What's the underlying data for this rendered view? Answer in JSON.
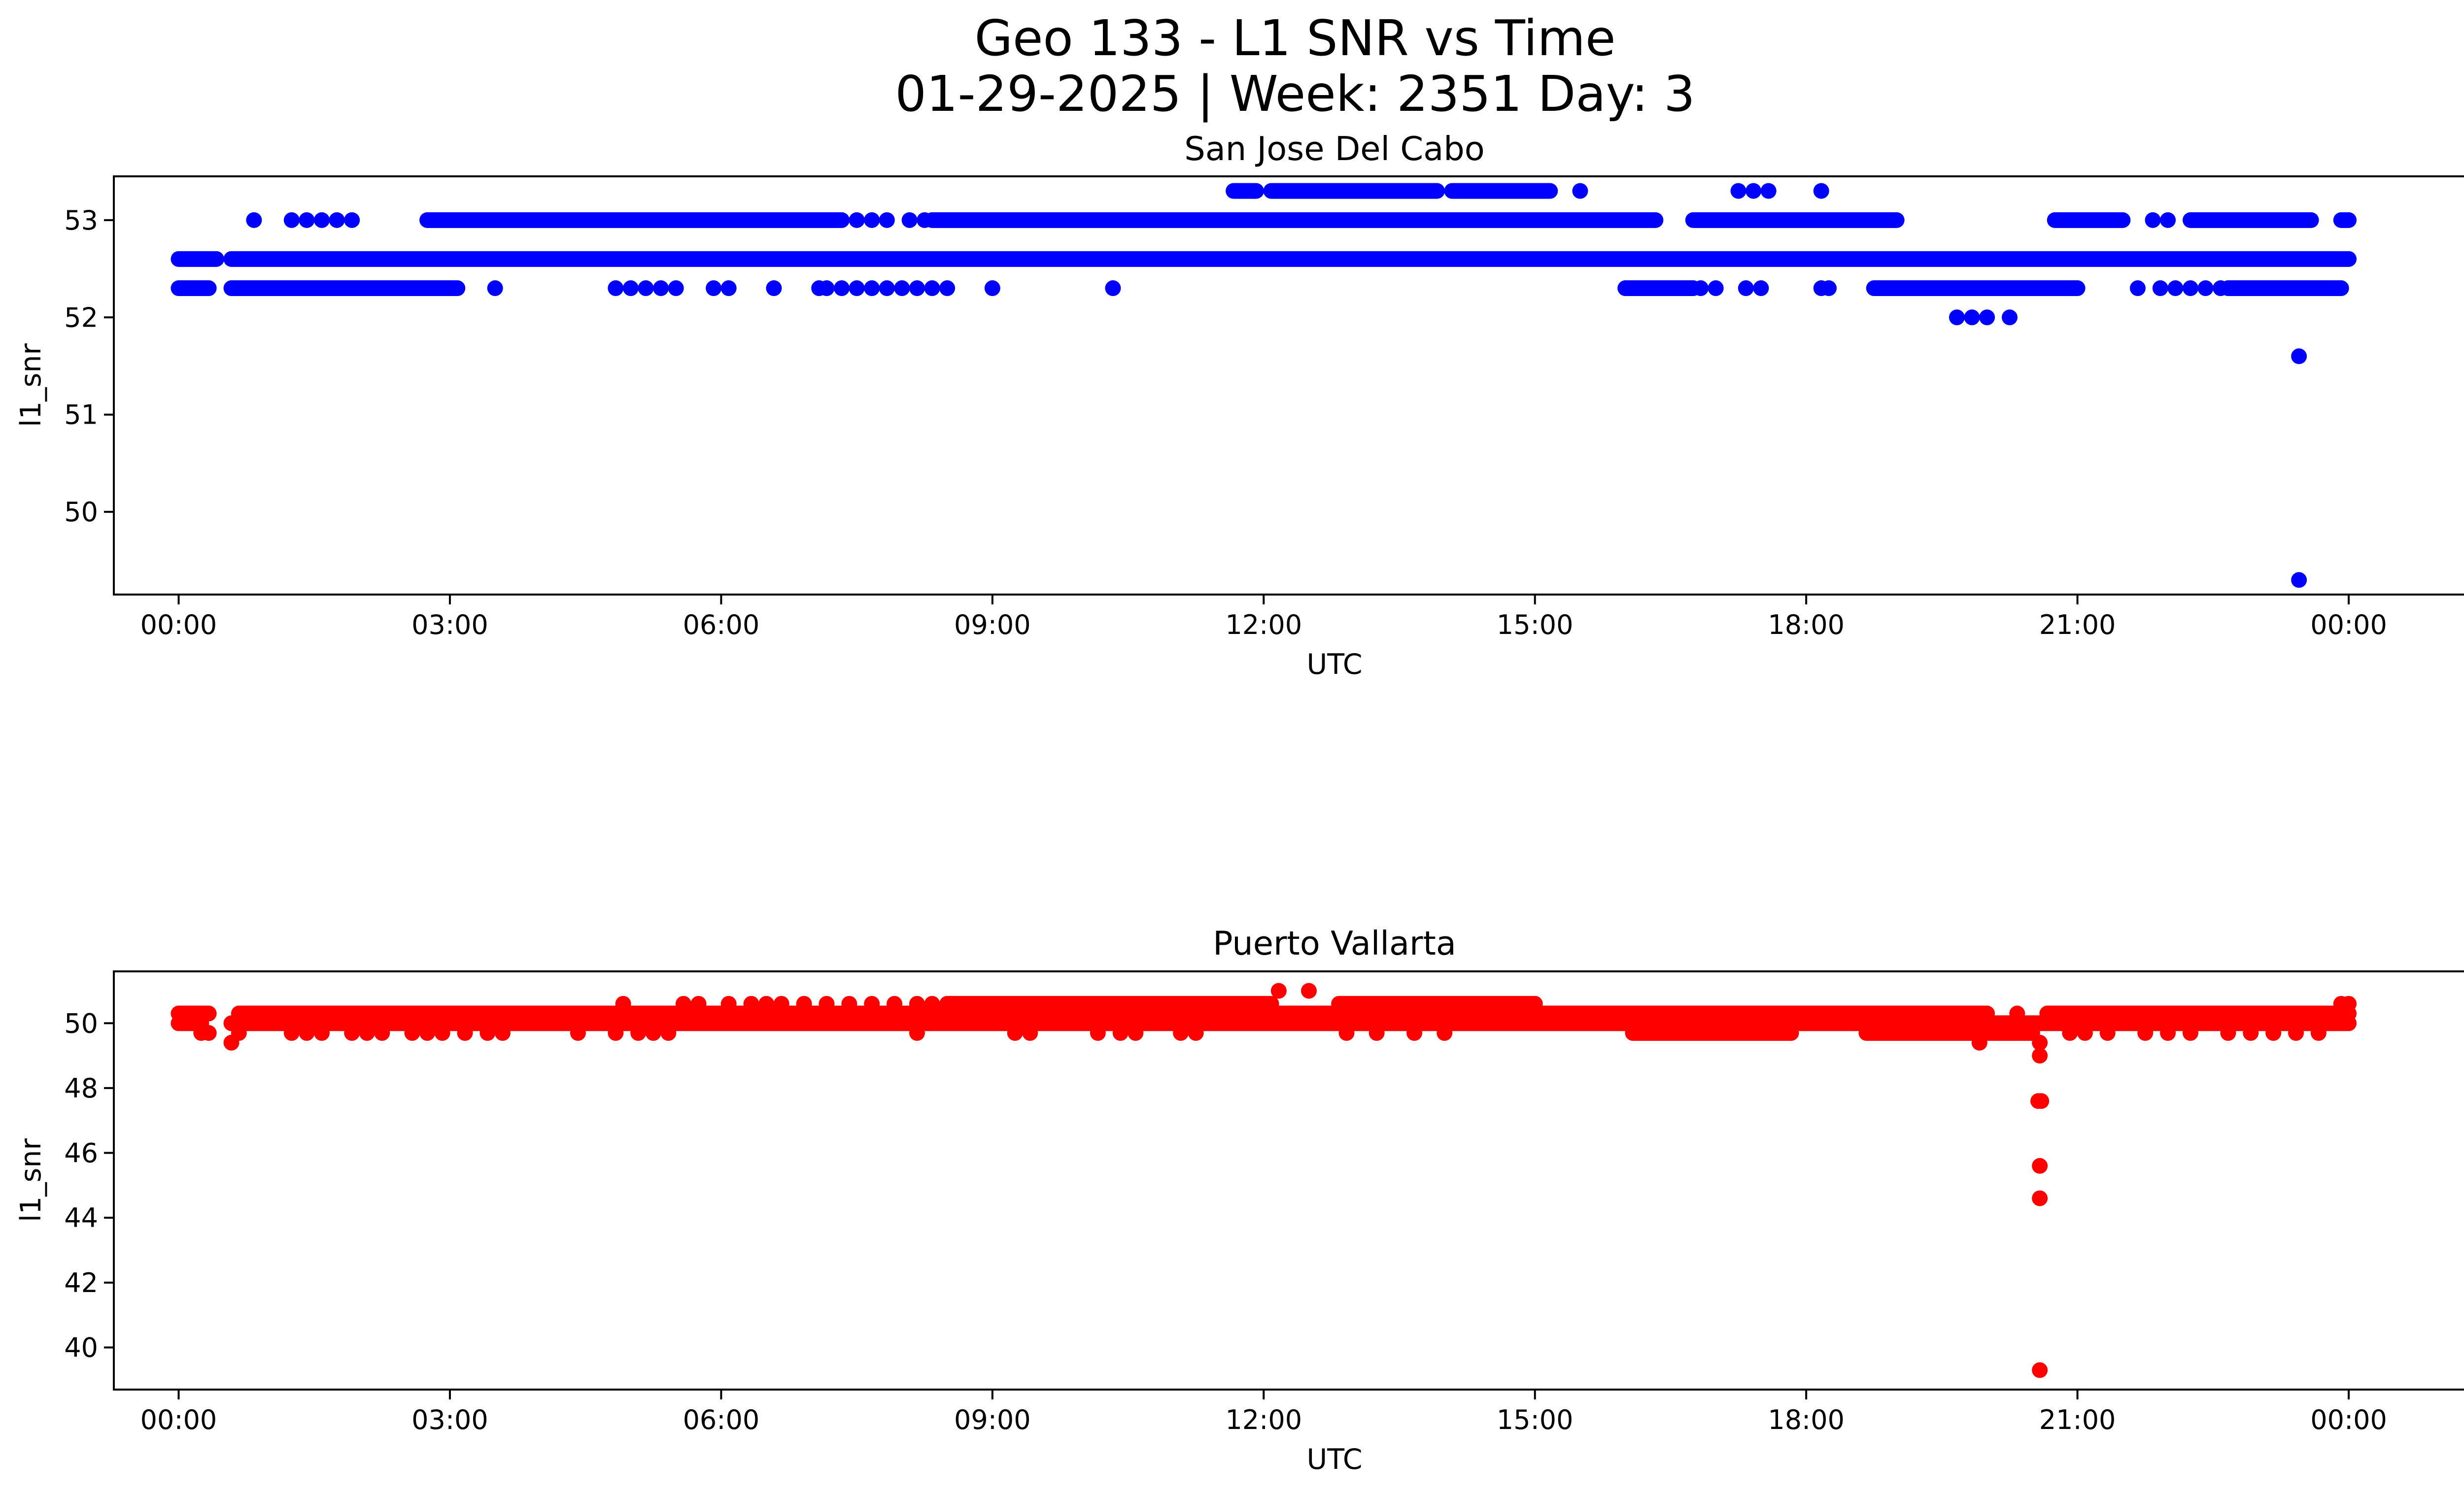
{
  "figure": {
    "title_line1": "Geo 133 - L1 SNR vs Time",
    "title_line2": "01-29-2025 | Week: 2351 Day: 3"
  },
  "chart_data": [
    {
      "type": "scatter",
      "title": "San Jose Del Cabo",
      "xlabel": "UTC",
      "ylabel": "l1_snr",
      "color": "#0000ff",
      "xlim": [
        "23:17",
        "26:17"
      ],
      "ylim": [
        49.15,
        53.45
      ],
      "x_ticks": [
        "00:00",
        "03:00",
        "06:00",
        "09:00",
        "12:00",
        "15:00",
        "18:00",
        "21:00",
        "00:00"
      ],
      "y_ticks": [
        50,
        51,
        52,
        53
      ],
      "series": [
        {
          "levels": [
            {
              "y": 53.3,
              "segments": [
                [
                  "11:40",
                  "11:55"
                ],
                [
                  "12:05",
                  "13:55"
                ],
                [
                  "14:05",
                  "15:10"
                ]
              ],
              "points": [
                "15:30",
                "17:15",
                "17:25",
                "17:35",
                "18:10"
              ]
            },
            {
              "y": 53.0,
              "segments": [
                [
                  "02:45",
                  "07:20"
                ],
                [
                  "08:20",
                  "16:20"
                ],
                [
                  "16:45",
                  "19:00"
                ],
                [
                  "20:45",
                  "21:30"
                ],
                [
                  "22:15",
                  "23:35"
                ],
                [
                  "23:55",
                  "24:00"
                ]
              ],
              "points": [
                "00:50",
                "01:15",
                "01:25",
                "01:35",
                "01:45",
                "01:55",
                "07:30",
                "07:40",
                "07:50",
                "08:05",
                "08:15",
                "21:50",
                "22:00"
              ]
            },
            {
              "y": 52.6,
              "segments": [
                [
                  "00:00",
                  "00:25"
                ],
                [
                  "00:35",
                  "24:00"
                ]
              ],
              "points": []
            },
            {
              "y": 52.3,
              "segments": [
                [
                  "00:00",
                  "00:20"
                ],
                [
                  "00:35",
                  "03:05"
                ],
                [
                  "16:00",
                  "16:45"
                ],
                [
                  "18:45",
                  "21:00"
                ],
                [
                  "22:40",
                  "23:55"
                ]
              ],
              "points": [
                "03:30",
                "04:50",
                "05:00",
                "05:10",
                "05:20",
                "05:30",
                "05:55",
                "06:05",
                "06:35",
                "07:05",
                "07:10",
                "07:20",
                "07:30",
                "07:40",
                "07:50",
                "08:00",
                "08:10",
                "08:20",
                "08:30",
                "09:00",
                "10:20",
                "16:50",
                "17:00",
                "17:20",
                "17:30",
                "18:10",
                "18:15",
                "21:40",
                "21:55",
                "22:05",
                "22:15",
                "22:25",
                "22:35"
              ]
            },
            {
              "y": 52.0,
              "segments": [],
              "points": [
                "19:40",
                "19:50",
                "20:00",
                "20:15"
              ]
            },
            {
              "y": 51.6,
              "segments": [],
              "points": [
                "23:27"
              ]
            },
            {
              "y": 49.3,
              "segments": [],
              "points": [
                "23:27"
              ]
            }
          ]
        }
      ]
    },
    {
      "type": "scatter",
      "title": "Puerto Vallarta",
      "xlabel": "UTC",
      "ylabel": "l1_snr",
      "color": "#ff0000",
      "xlim": [
        "23:17",
        "26:17"
      ],
      "ylim": [
        38.7,
        51.6
      ],
      "x_ticks": [
        "00:00",
        "03:00",
        "06:00",
        "09:00",
        "12:00",
        "15:00",
        "18:00",
        "21:00",
        "00:00"
      ],
      "y_ticks": [
        40,
        42,
        44,
        46,
        48,
        50
      ],
      "series": [
        {
          "levels": [
            {
              "y": 51.0,
              "segments": [],
              "points": [
                "12:10",
                "12:30"
              ]
            },
            {
              "y": 50.6,
              "segments": [
                [
                  "08:30",
                  "12:05"
                ],
                [
                  "12:50",
                  "15:00"
                ]
              ],
              "points": [
                "04:55",
                "05:35",
                "05:45",
                "06:05",
                "06:20",
                "06:30",
                "06:40",
                "06:55",
                "07:10",
                "07:25",
                "07:40",
                "07:55",
                "08:10",
                "08:20",
                "23:55",
                "24:00"
              ]
            },
            {
              "y": 50.3,
              "segments": [
                [
                  "00:00",
                  "00:20"
                ],
                [
                  "00:40",
                  "20:00"
                ],
                [
                  "20:40",
                  "24:00"
                ]
              ],
              "points": [
                "20:20"
              ]
            },
            {
              "y": 50.0,
              "segments": [
                [
                  "00:00",
                  "00:15"
                ],
                [
                  "00:35",
                  "24:00"
                ]
              ],
              "points": []
            },
            {
              "y": 49.7,
              "segments": [
                [
                  "16:05",
                  "17:50"
                ],
                [
                  "18:40",
                  "20:30"
                ]
              ],
              "points": [
                "00:15",
                "00:20",
                "00:40",
                "01:15",
                "01:25",
                "01:35",
                "01:55",
                "02:05",
                "02:15",
                "02:35",
                "02:45",
                "02:55",
                "03:10",
                "03:25",
                "03:35",
                "04:25",
                "04:50",
                "05:05",
                "05:15",
                "05:25",
                "08:10",
                "09:15",
                "09:25",
                "10:10",
                "10:25",
                "10:35",
                "11:05",
                "11:15",
                "12:55",
                "13:15",
                "13:40",
                "14:00",
                "20:55",
                "21:05",
                "21:20",
                "21:45",
                "22:00",
                "22:15",
                "22:40",
                "22:55",
                "23:10",
                "23:25",
                "23:40"
              ]
            },
            {
              "y": 49.4,
              "segments": [],
              "points": [
                "00:35",
                "19:55",
                "20:35"
              ]
            },
            {
              "y": 49.0,
              "segments": [],
              "points": [
                "20:35"
              ]
            },
            {
              "y": 47.6,
              "segments": [],
              "points": [
                "20:34",
                "20:36"
              ]
            },
            {
              "y": 45.6,
              "segments": [],
              "points": [
                "20:35"
              ]
            },
            {
              "y": 44.6,
              "segments": [],
              "points": [
                "20:35"
              ]
            },
            {
              "y": 39.3,
              "segments": [],
              "points": [
                "20:35"
              ]
            }
          ]
        }
      ]
    }
  ]
}
